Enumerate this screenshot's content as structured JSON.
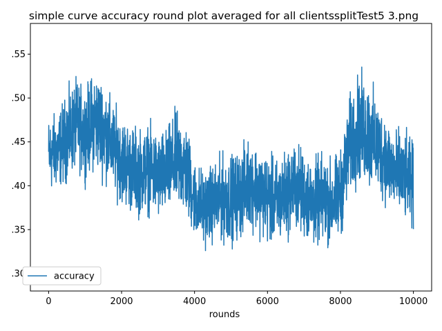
{
  "chart_data": {
    "type": "line",
    "title": "simple curve accuracy round plot averaged for all clientssplitTest5 3.png",
    "xlabel": "rounds",
    "ylabel": "",
    "xlim": [
      -500,
      10500
    ],
    "ylim": [
      28,
      58.5
    ],
    "x_ticks": [
      0,
      2000,
      4000,
      6000,
      8000,
      10000
    ],
    "x_tick_labels": [
      "0",
      "2000",
      "4000",
      "6000",
      "8000",
      "10000"
    ],
    "y_ticks": [
      30,
      35,
      40,
      45,
      50,
      55
    ],
    "y_tick_labels": [
      ".30",
      ".35",
      ".40",
      ".45",
      ".50",
      ".55"
    ],
    "grid": false,
    "legend_position": "lower-left",
    "series": [
      {
        "name": "accuracy",
        "color": "#1f77b4",
        "x": [
          0,
          250,
          500,
          750,
          1000,
          1250,
          1500,
          1750,
          2000,
          2250,
          2500,
          2750,
          3000,
          3250,
          3500,
          3750,
          4000,
          4250,
          4500,
          4750,
          5000,
          5250,
          5500,
          5750,
          6000,
          6250,
          6500,
          6750,
          7000,
          7250,
          7500,
          7750,
          8000,
          8250,
          8500,
          8750,
          9000,
          9250,
          9500,
          9750,
          10000
        ],
        "y": [
          43.5,
          44,
          45.5,
          47,
          46,
          47.5,
          46.5,
          44.5,
          43,
          42,
          41.5,
          42,
          41,
          41.5,
          43,
          42,
          38.5,
          37.5,
          38,
          38.5,
          38.5,
          39,
          40.5,
          39.5,
          38.5,
          38,
          39,
          40,
          39,
          38,
          38.5,
          38,
          39,
          44.5,
          46.5,
          46,
          44.5,
          43,
          41.5,
          41,
          40
        ],
        "amplitude": [
          3.5,
          3.5,
          4,
          4,
          4,
          4.5,
          4.5,
          4,
          4,
          4,
          4,
          4,
          4,
          4,
          4.5,
          4.5,
          3.5,
          3.5,
          3.5,
          4,
          4,
          4,
          4,
          4,
          4,
          4,
          4,
          4,
          4,
          4,
          4,
          4,
          4,
          4.5,
          5,
          5,
          4.5,
          4,
          4,
          4,
          4
        ]
      }
    ]
  }
}
